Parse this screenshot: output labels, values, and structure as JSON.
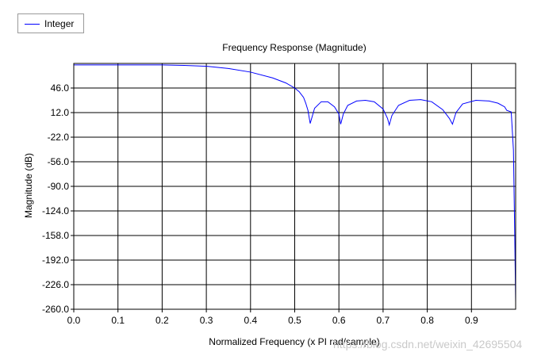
{
  "chart_data": {
    "type": "line",
    "title": "Frequency Response (Magnitude)",
    "xlabel": "Normalized Frequency (x PI rad/sample)",
    "ylabel": "Magnitude (dB)",
    "xlim": [
      0.0,
      1.0
    ],
    "ylim": [
      -260.0,
      80.0
    ],
    "x_ticks": [
      0.0,
      0.1,
      0.2,
      0.3,
      0.4,
      0.5,
      0.6,
      0.7,
      0.8,
      0.9
    ],
    "x_tick_labels": [
      "0.0",
      "0.1",
      "0.2",
      "0.3",
      "0.4",
      "0.5",
      "0.6",
      "0.7",
      "0.8",
      "0.9"
    ],
    "y_ticks": [
      46.0,
      12.0,
      -22.0,
      -56.0,
      -90.0,
      -124.0,
      -158.0,
      -192.0,
      -226.0,
      -260.0
    ],
    "y_tick_labels": [
      "46.0",
      "12.0",
      "-22.0",
      "-56.0",
      "-90.0",
      "-124.0",
      "-158.0",
      "-192.0",
      "-226.0",
      "-260.0"
    ],
    "grid": true,
    "legend_position": "top-left",
    "series": [
      {
        "name": "Integer",
        "color": "#0000ff",
        "x": [
          0.0,
          0.1,
          0.2,
          0.25,
          0.3,
          0.35,
          0.4,
          0.45,
          0.48,
          0.5,
          0.51,
          0.52,
          0.525,
          0.53,
          0.535,
          0.545,
          0.56,
          0.575,
          0.59,
          0.6,
          0.604,
          0.61,
          0.62,
          0.64,
          0.66,
          0.68,
          0.7,
          0.71,
          0.714,
          0.72,
          0.735,
          0.76,
          0.785,
          0.81,
          0.835,
          0.85,
          0.857,
          0.865,
          0.88,
          0.91,
          0.94,
          0.96,
          0.975,
          0.98,
          0.99,
          0.995,
          0.998,
          1.0
        ],
        "y": [
          78.0,
          78.0,
          77.9,
          77.3,
          76.1,
          73.0,
          68.0,
          60.0,
          53.0,
          46.0,
          41.0,
          33.0,
          25.0,
          15.0,
          -3.0,
          18.0,
          27.0,
          27.0,
          20.0,
          10.0,
          -4.0,
          10.0,
          22.0,
          28.0,
          29.0,
          27.0,
          17.0,
          4.0,
          -5.0,
          8.0,
          22.0,
          29.0,
          30.0,
          27.0,
          16.0,
          4.0,
          -4.0,
          12.0,
          24.0,
          29.0,
          28.0,
          25.0,
          20.0,
          15.0,
          13.0,
          -40.0,
          -160.0,
          -250.0
        ]
      }
    ]
  },
  "legend": {
    "label": "Integer"
  },
  "watermark": "https://blog.csdn.net/weixin_42695504"
}
